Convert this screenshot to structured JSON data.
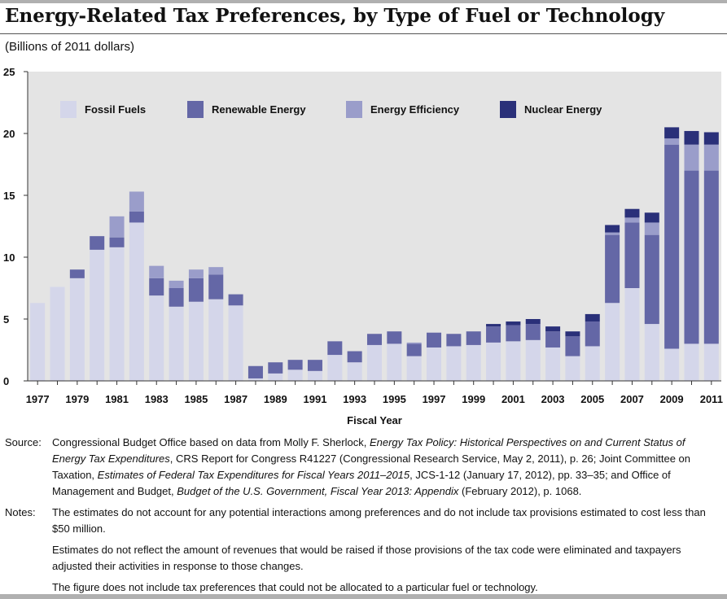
{
  "title": "Energy-Related Tax Preferences, by Type of Fuel or Technology",
  "subtitle": "(Billions of 2011 dollars)",
  "colors": {
    "plot_bg": "#e4e4e4",
    "fossil": "#d4d6ea",
    "renewable": "#6467a6",
    "efficiency": "#9a9dca",
    "nuclear": "#2a3079"
  },
  "chart_data": {
    "type": "bar",
    "stacked": true,
    "xlabel": "Fiscal Year",
    "ylabel": "",
    "ylim": [
      0,
      25
    ],
    "yticks": [
      0,
      5,
      10,
      15,
      20,
      25
    ],
    "grid": false,
    "legend_placement": "top",
    "categories": [
      "1977",
      "1978",
      "1979",
      "1980",
      "1981",
      "1982",
      "1983",
      "1984",
      "1985",
      "1986",
      "1987",
      "1988",
      "1989",
      "1990",
      "1991",
      "1992",
      "1993",
      "1994",
      "1995",
      "1996",
      "1997",
      "1998",
      "1999",
      "2000",
      "2001",
      "2002",
      "2003",
      "2004",
      "2005",
      "2006",
      "2007",
      "2008",
      "2009",
      "2010",
      "2011"
    ],
    "xtick_labels": [
      "1977",
      "1979",
      "1981",
      "1983",
      "1985",
      "1987",
      "1989",
      "1991",
      "1993",
      "1995",
      "1997",
      "1999",
      "2001",
      "2003",
      "2005",
      "2007",
      "2009",
      "2011"
    ],
    "series": [
      {
        "name": "Fossil Fuels",
        "color_key": "fossil",
        "values": [
          6.3,
          7.6,
          8.3,
          10.6,
          10.8,
          12.8,
          6.9,
          6.0,
          6.4,
          6.6,
          6.1,
          0.2,
          0.6,
          0.9,
          0.8,
          2.1,
          1.5,
          2.9,
          3.0,
          2.0,
          2.7,
          2.8,
          2.9,
          3.1,
          3.2,
          3.3,
          2.7,
          2.0,
          2.8,
          6.3,
          7.5,
          4.6,
          2.6,
          3.0,
          3.0
        ]
      },
      {
        "name": "Renewable Energy",
        "color_key": "renewable",
        "values": [
          0,
          0,
          0.7,
          1.1,
          0.8,
          0.9,
          1.4,
          1.5,
          1.9,
          2.0,
          0.9,
          1.0,
          0.9,
          0.8,
          0.9,
          1.1,
          0.9,
          0.9,
          1.0,
          1.0,
          1.2,
          1.0,
          1.1,
          1.3,
          1.3,
          1.3,
          1.3,
          1.6,
          2.0,
          5.5,
          5.3,
          7.2,
          16.5,
          14.0,
          14.0
        ]
      },
      {
        "name": "Energy Efficiency",
        "color_key": "efficiency",
        "values": [
          0,
          0,
          0,
          0,
          1.7,
          1.6,
          1.0,
          0.6,
          0.7,
          0.6,
          0,
          0,
          0,
          0,
          0,
          0,
          0,
          0,
          0,
          0.1,
          0,
          0,
          0,
          0,
          0,
          0,
          0,
          0,
          0,
          0.2,
          0.4,
          1.0,
          0.5,
          2.1,
          2.1
        ]
      },
      {
        "name": "Nuclear Energy",
        "color_key": "nuclear",
        "values": [
          0,
          0,
          0,
          0,
          0,
          0,
          0,
          0,
          0,
          0,
          0,
          0,
          0,
          0,
          0,
          0,
          0,
          0,
          0,
          0,
          0,
          0,
          0,
          0.2,
          0.3,
          0.4,
          0.4,
          0.4,
          0.6,
          0.6,
          0.7,
          0.8,
          0.9,
          1.1,
          1.0
        ]
      }
    ]
  },
  "notes": {
    "source_label": "Source:",
    "source_parts": [
      {
        "t": "Congressional Budget Office based on data from Molly F. Sherlock, ",
        "i": false
      },
      {
        "t": "Energy Tax Policy: Historical Perspectives on and Current Status of Energy Tax Expenditures",
        "i": true
      },
      {
        "t": ", CRS Report for Congress R41227 (Congressional Research Service, May 2, 2011), p. 26; Joint Committee on Taxation, ",
        "i": false
      },
      {
        "t": "Estimates of Federal Tax Expenditures for Fiscal Years 2011–2015",
        "i": true
      },
      {
        "t": ", JCS-1-12 (January 17, 2012), pp. 33–35; and Office of Management and Budget, ",
        "i": false
      },
      {
        "t": "Budget of the U.S. Government, Fiscal Year 2013: Appendix",
        "i": true
      },
      {
        "t": " (February 2012), p. 1068.",
        "i": false
      }
    ],
    "notes_label": "Notes:",
    "note_1": "The estimates do not account for any potential interactions among preferences and do not include tax provisions estimated to cost less than $50 million.",
    "note_2": "Estimates do not reflect the amount of revenues that would be raised if those provisions of the tax code were eliminated and taxpayers adjusted their activities in response to those changes.",
    "note_3": "The figure does not include tax preferences that could not be allocated to a particular fuel or technology."
  }
}
